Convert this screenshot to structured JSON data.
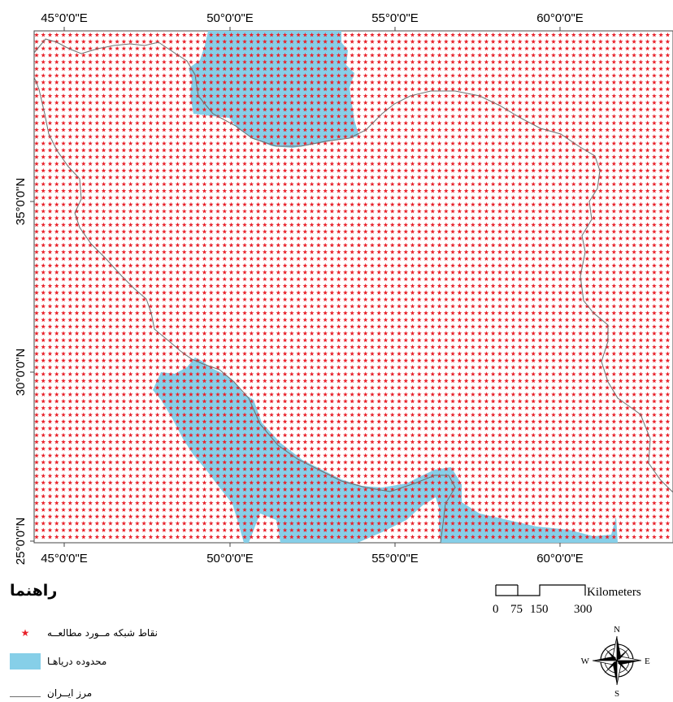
{
  "axes": {
    "lon_labels": [
      "45°0'0\"E",
      "50°0'0\"E",
      "55°0'0\"E",
      "60°0'0\"E"
    ],
    "lat_labels": [
      "35°0'0\"N",
      "30°0'0\"N",
      "25°0'0\"N"
    ]
  },
  "legend": {
    "title": "راهنما",
    "items": [
      {
        "label": "نقاط شبکه مــورد مطالعــه",
        "symbol": "star-icon",
        "color": "#e8212a"
      },
      {
        "label": "محدوده دریاهـا",
        "symbol": "sea-swatch",
        "color": "#86cfe8"
      },
      {
        "label": "مرز ایــران",
        "symbol": "border-line",
        "color": "#6e6e6e"
      }
    ]
  },
  "scale_bar": {
    "units": "Kilometers",
    "labels": [
      "0",
      "75",
      "150",
      "300"
    ]
  },
  "north_arrow": {
    "n": "N",
    "s": "S",
    "e": "E",
    "w": "W"
  },
  "colors": {
    "grid_point": "#e8212a",
    "sea": "#86cfe8",
    "border": "#6e6e6e"
  }
}
